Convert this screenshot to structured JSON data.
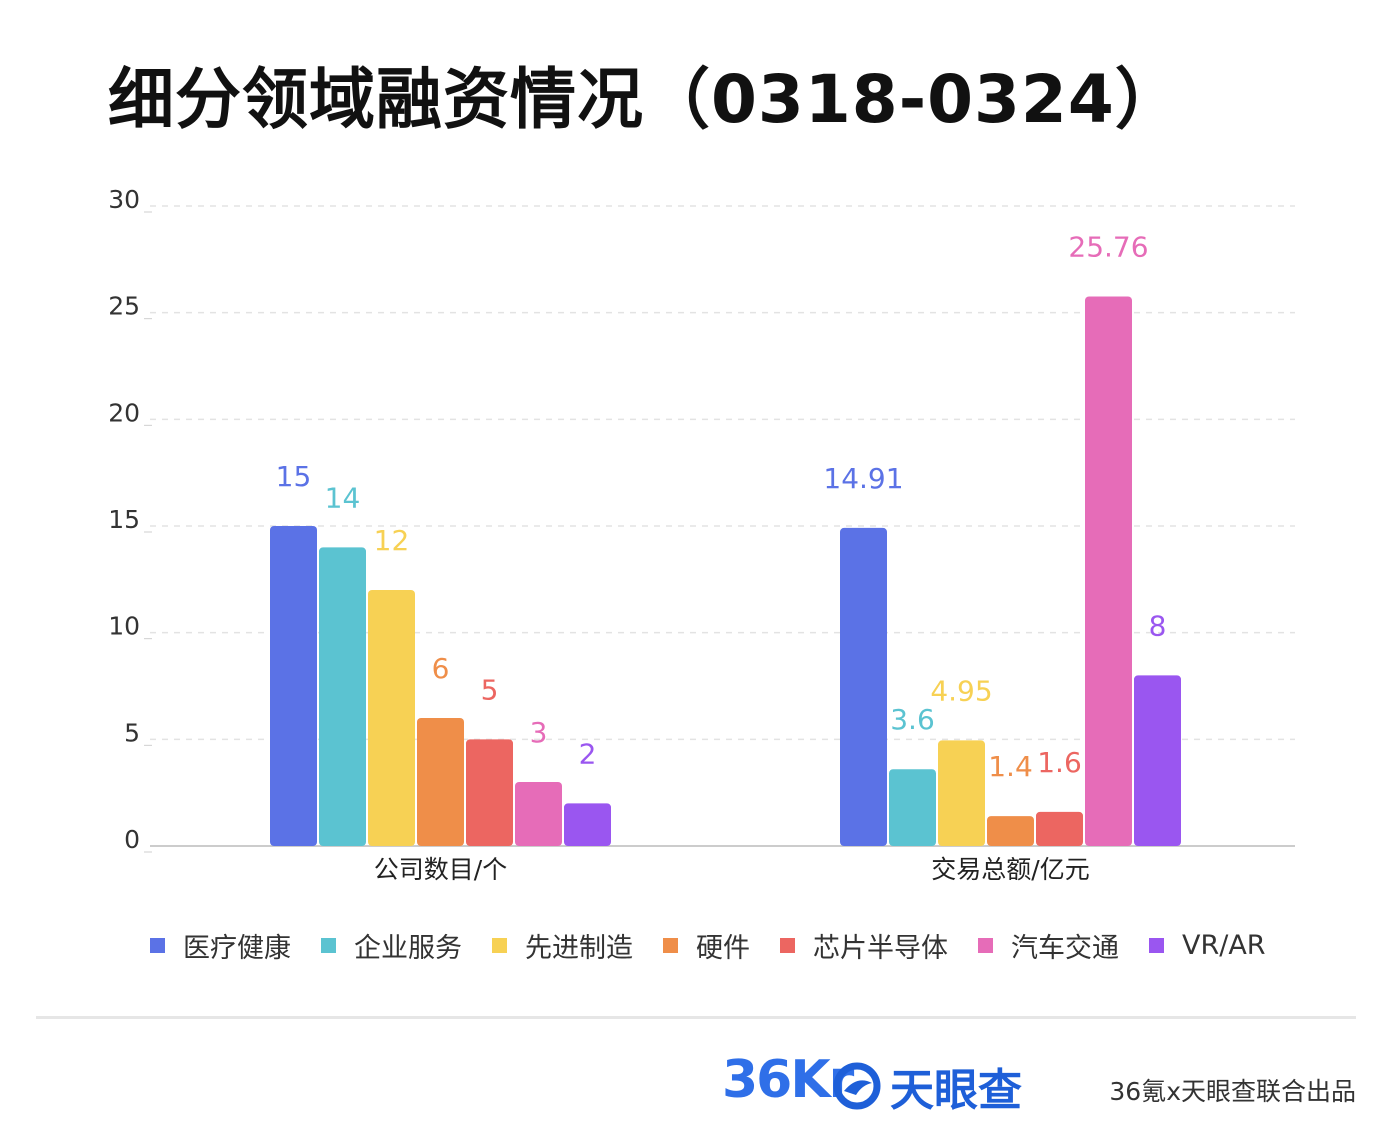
{
  "title": "细分领域融资情况（0318-0324）",
  "credit": "36氪x天眼查联合出品",
  "logos": {
    "kr": "36Kr",
    "tyc": "天眼查",
    "tyc_icon": "tianyancha-eye-icon"
  },
  "chart_data": {
    "type": "bar",
    "title": "细分领域融资情况（0318-0324）",
    "categories": [
      "公司数目/个",
      "交易总额/亿元"
    ],
    "series": [
      {
        "name": "医疗健康",
        "color": "#5b72e6",
        "values": [
          15,
          14.91
        ],
        "labels": [
          "15",
          "14.91"
        ]
      },
      {
        "name": "企业服务",
        "color": "#5bc3d1",
        "values": [
          14,
          3.6
        ],
        "labels": [
          "14",
          "3.6"
        ]
      },
      {
        "name": "先进制造",
        "color": "#f7d154",
        "values": [
          12,
          4.95
        ],
        "labels": [
          "12",
          "4.95"
        ]
      },
      {
        "name": "硬件",
        "color": "#ef8e49",
        "values": [
          6,
          1.4
        ],
        "labels": [
          "6",
          "1.4"
        ]
      },
      {
        "name": "芯片半导体",
        "color": "#ec6661",
        "values": [
          5,
          1.6
        ],
        "labels": [
          "5",
          "1.6"
        ]
      },
      {
        "name": "汽车交通",
        "color": "#e66cb8",
        "values": [
          3,
          25.76
        ],
        "labels": [
          "3",
          "25.76"
        ]
      },
      {
        "name": "VR/AR",
        "color": "#9a56f0",
        "values": [
          2,
          8
        ],
        "labels": [
          "2",
          "8"
        ]
      }
    ],
    "yticks": [
      "0",
      "5",
      "10",
      "15",
      "20",
      "25",
      "30"
    ],
    "ylim": [
      0,
      30
    ],
    "grid": true,
    "legend": "bottom"
  }
}
